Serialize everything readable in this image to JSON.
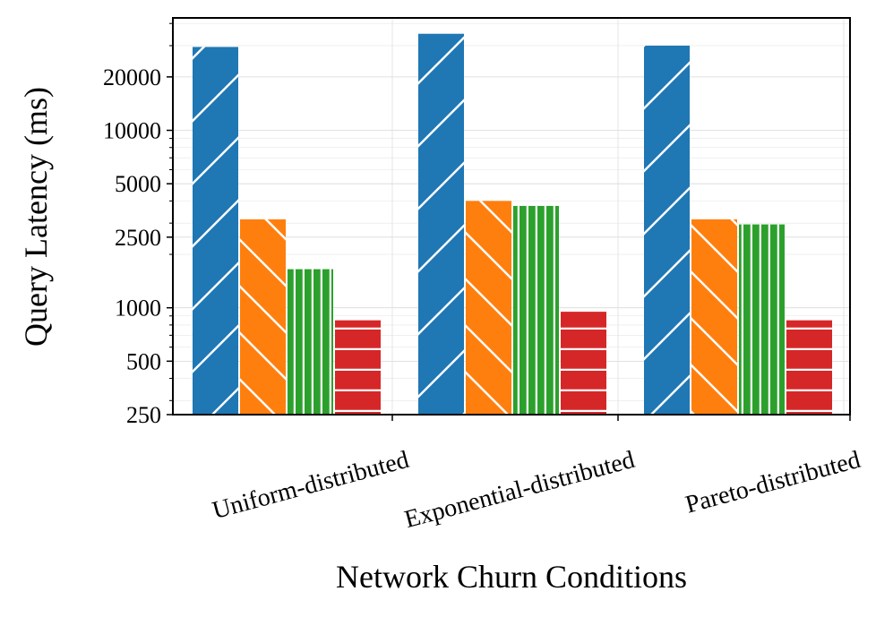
{
  "chart_data": {
    "type": "bar",
    "title": "",
    "xlabel": "Network Churn Conditions",
    "ylabel": "Query Latency (ms)",
    "yscale": "log",
    "ylim": [
      250,
      43000
    ],
    "yticks": [
      250,
      500,
      1000,
      2500,
      5000,
      10000,
      20000
    ],
    "ytick_labels": [
      "250",
      "500",
      "1000",
      "2500",
      "5000",
      "10000",
      "20000"
    ],
    "categories": [
      "Uniform-distributed",
      "Exponential-distributed",
      "Pareto-distributed"
    ],
    "grid": true,
    "legend": "none",
    "series": [
      {
        "color": "#1f77b4",
        "hatch": "diagonal-up",
        "values": [
          29500,
          35000,
          30000
        ]
      },
      {
        "color": "#ff7f0e",
        "hatch": "diagonal-down",
        "values": [
          3150,
          4000,
          3150
        ]
      },
      {
        "color": "#2ca02c",
        "hatch": "vertical",
        "values": [
          1650,
          3750,
          2950
        ]
      },
      {
        "color": "#d62728",
        "hatch": "horizontal",
        "values": [
          850,
          950,
          850
        ]
      }
    ]
  }
}
